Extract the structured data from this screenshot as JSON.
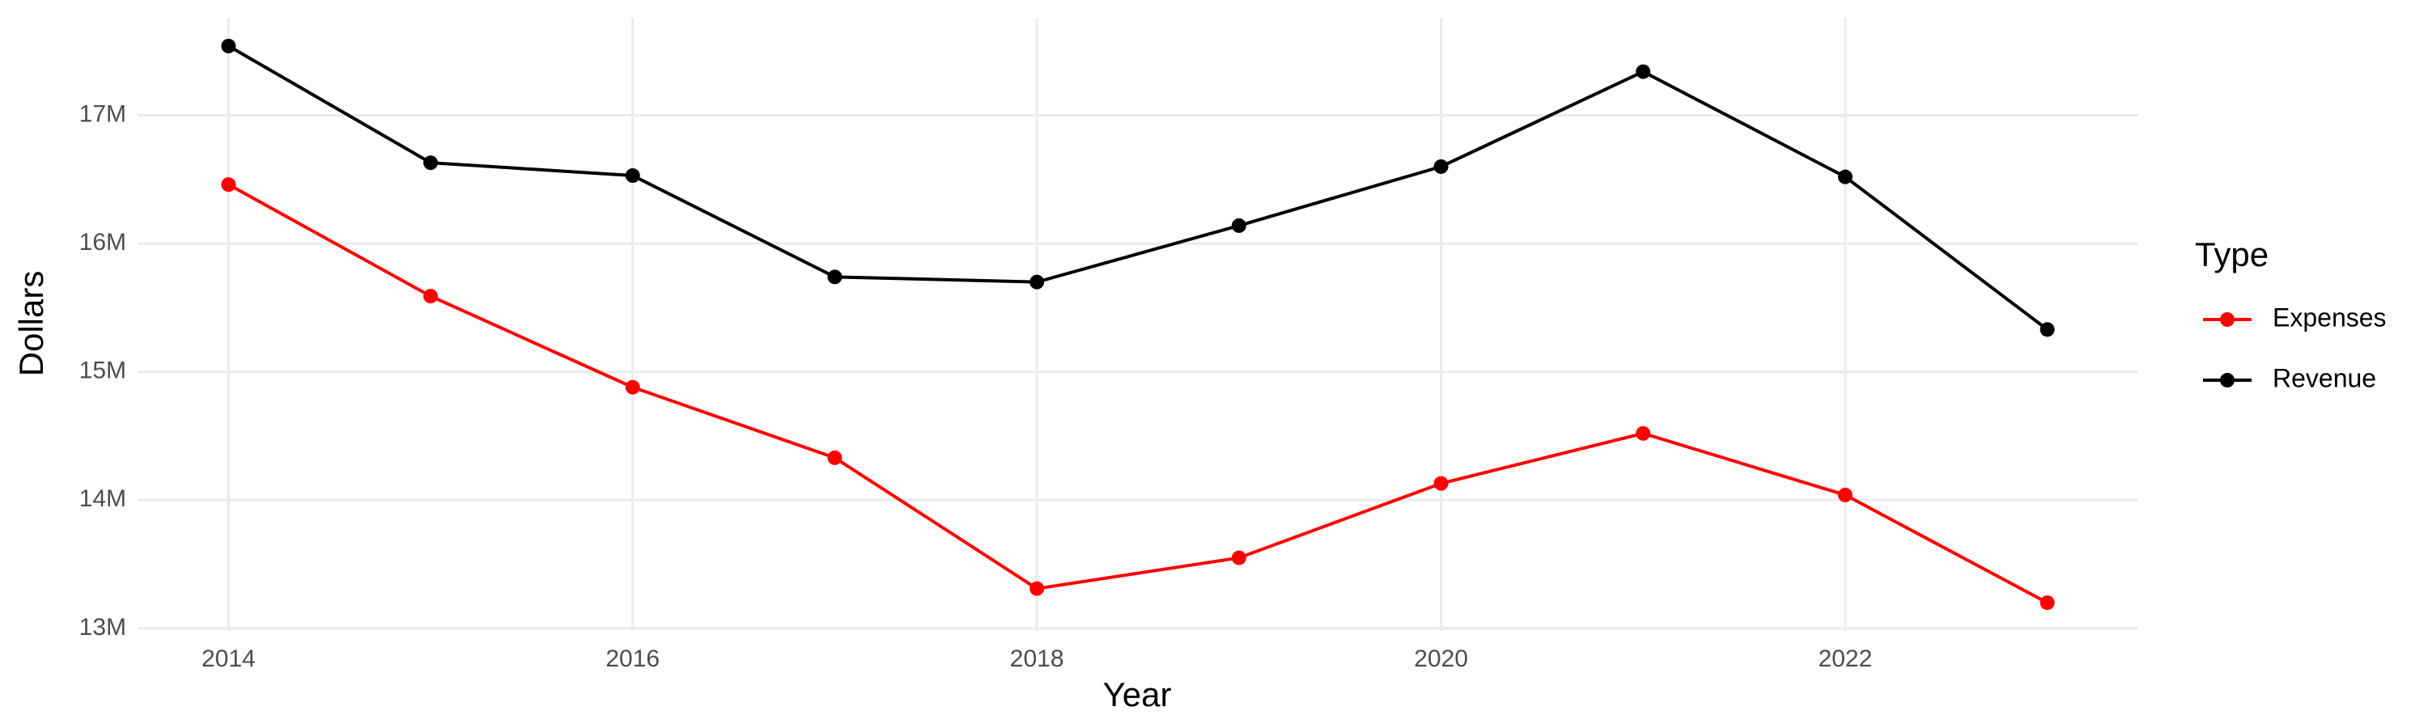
{
  "chart_data": {
    "type": "line",
    "x_label": "Year",
    "y_label": "Dollars",
    "legend_title": "Type",
    "legend_position": "right",
    "x": [
      2014,
      2015,
      2016,
      2017,
      2018,
      2019,
      2020,
      2021,
      2022,
      2023
    ],
    "series": [
      {
        "name": "Expenses",
        "color": "#ff0000",
        "values": [
          16460000,
          15590000,
          14880000,
          14330000,
          13310000,
          13550000,
          14130000,
          14520000,
          14040000,
          13200000
        ]
      },
      {
        "name": "Revenue",
        "color": "#000000",
        "values": [
          17540000,
          16630000,
          16530000,
          15740000,
          15700000,
          16140000,
          16600000,
          17340000,
          16520000,
          15330000
        ]
      }
    ],
    "xlim": [
      2013.55,
      2023.45
    ],
    "xticks": [
      2014,
      2016,
      2018,
      2020,
      2022
    ],
    "ylim": [
      12980000,
      17760000
    ],
    "yticks": [
      {
        "value": 13000000,
        "label": "13M"
      },
      {
        "value": 14000000,
        "label": "14M"
      },
      {
        "value": 15000000,
        "label": "15M"
      },
      {
        "value": 16000000,
        "label": "16M"
      },
      {
        "value": 17000000,
        "label": "17M"
      }
    ],
    "grid": true
  }
}
